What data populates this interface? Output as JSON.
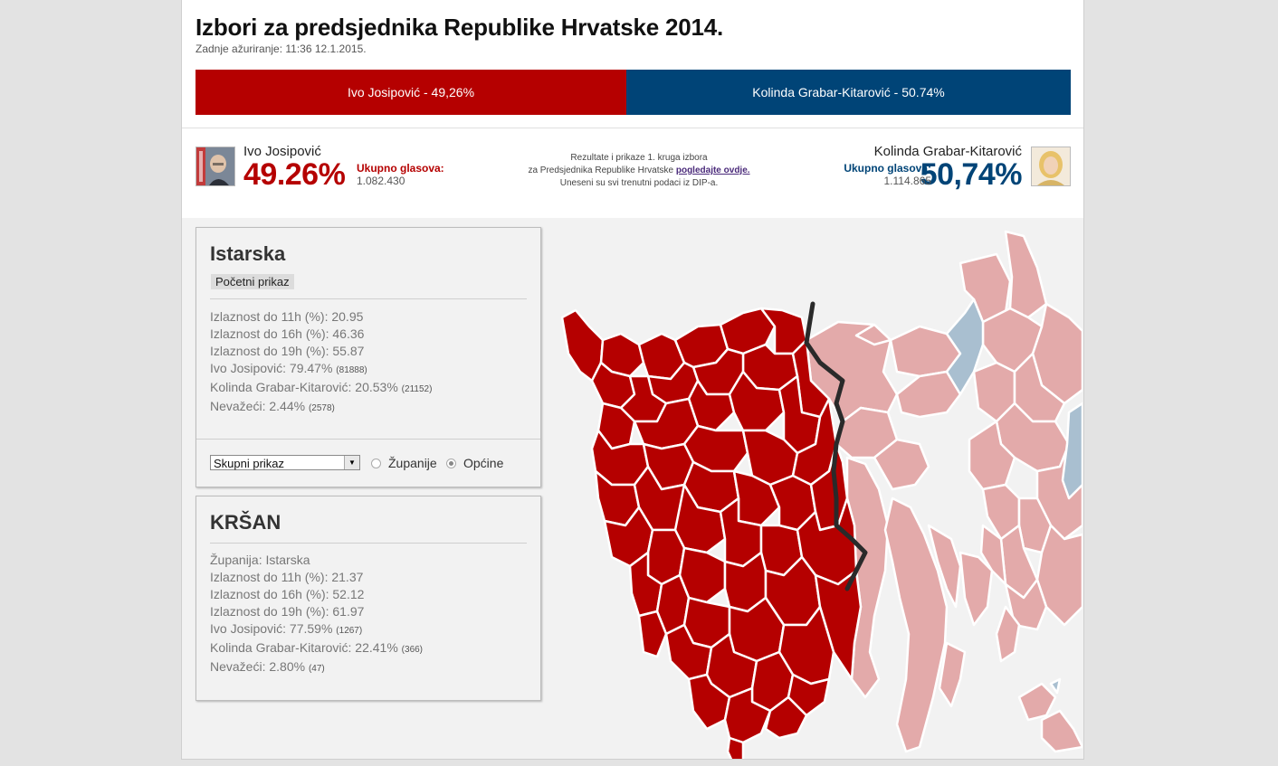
{
  "header": {
    "title": "Izbori za predsjednika Republike Hrvatske 2014.",
    "updated": "Zadnje ažuriranje: 11:36 12.1.2015."
  },
  "result_bar": {
    "red_label": "Ivo Josipović - 49,26%",
    "blue_label": "Kolinda Grabar-Kitarović - 50.74%",
    "red_share": 49.26,
    "blue_share": 50.74,
    "colors": {
      "red": "#b50000",
      "blue": "#004477"
    }
  },
  "candidates": {
    "left": {
      "name": "Ivo Josipović",
      "pct": "49.26%",
      "votes_label": "Ukupno glasova:",
      "votes": "1.082.430",
      "avatar_icon": "portrait-photo"
    },
    "right": {
      "name": "Kolinda Grabar-Kitarović",
      "pct": "50,74%",
      "votes_label": "Ukupno glasova:",
      "votes": "1.114.865",
      "avatar_icon": "portrait-photo"
    }
  },
  "info": {
    "line1": "Rezultate i prikaze 1. kruga izbora",
    "line2_prefix": "za Predsjednika Republike Hrvatske",
    "line2_link": "pogledajte ovdje.",
    "line3": "Uneseni su svi trenutni podaci iz DIP-a."
  },
  "panel1": {
    "title": "Istarska",
    "reset_label": "Početni prikaz",
    "stats": [
      {
        "text": "Izlaznost do 11h (%): 20.95",
        "small": ""
      },
      {
        "text": "Izlaznost do 16h (%): 46.36",
        "small": ""
      },
      {
        "text": "Izlaznost do 19h (%): 55.87",
        "small": ""
      },
      {
        "text": "Ivo Josipović: 79.47%",
        "small": "(81888)"
      },
      {
        "text": "Kolinda Grabar-Kitarović: 20.53%",
        "small": "(21152)"
      },
      {
        "text": "Nevažeći: 2.44%",
        "small": "(2578)"
      }
    ],
    "select_value": "Skupni prikaz",
    "radio_zupanije": "Županije",
    "radio_opcine": "Općine",
    "selected_radio": "Općine"
  },
  "panel2": {
    "title": "KRŠAN",
    "stats": [
      {
        "text": "Županija: Istarska",
        "small": ""
      },
      {
        "text": "Izlaznost do 11h (%): 21.37",
        "small": ""
      },
      {
        "text": "Izlaznost do 16h (%): 52.12",
        "small": ""
      },
      {
        "text": "Izlaznost do 19h (%): 61.97",
        "small": ""
      },
      {
        "text": "Ivo Josipović: 77.59%",
        "small": "(1267)"
      },
      {
        "text": "Kolinda Grabar-Kitarović: 22.41%",
        "small": "(366)"
      },
      {
        "text": "Nevažeći: 2.80%",
        "small": "(47)"
      }
    ]
  },
  "map": {
    "colors": {
      "istria": "#b50000",
      "neighbor_red": "#e3aaaa",
      "neighbor_blue": "#a9bfd0",
      "border": "#2a2a2a"
    }
  }
}
